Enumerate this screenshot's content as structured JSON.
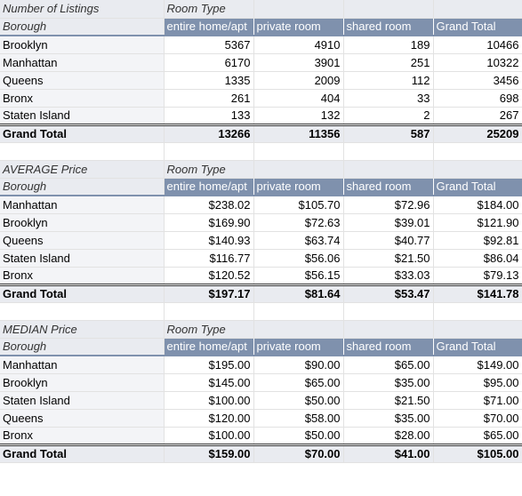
{
  "pivots": [
    {
      "title": "Number of Listings",
      "col_header": "Room Type",
      "row_header": "Borough",
      "columns": [
        "entire home/apt",
        "private room",
        "shared room",
        "Grand Total"
      ],
      "rows": [
        {
          "label": "Brooklyn",
          "values": [
            "5367",
            "4910",
            "189",
            "10466"
          ]
        },
        {
          "label": "Manhattan",
          "values": [
            "6170",
            "3901",
            "251",
            "10322"
          ]
        },
        {
          "label": "Queens",
          "values": [
            "1335",
            "2009",
            "112",
            "3456"
          ]
        },
        {
          "label": "Bronx",
          "values": [
            "261",
            "404",
            "33",
            "698"
          ]
        },
        {
          "label": "Staten Island",
          "values": [
            "133",
            "132",
            "2",
            "267"
          ]
        }
      ],
      "total": {
        "label": "Grand Total",
        "values": [
          "13266",
          "11356",
          "587",
          "25209"
        ]
      }
    },
    {
      "title": "AVERAGE Price",
      "col_header": "Room Type",
      "row_header": "Borough",
      "columns": [
        "entire home/apt",
        "private room",
        "shared room",
        "Grand Total"
      ],
      "rows": [
        {
          "label": "Manhattan",
          "values": [
            "$238.02",
            "$105.70",
            "$72.96",
            "$184.00"
          ]
        },
        {
          "label": "Brooklyn",
          "values": [
            "$169.90",
            "$72.63",
            "$39.01",
            "$121.90"
          ]
        },
        {
          "label": "Queens",
          "values": [
            "$140.93",
            "$63.74",
            "$40.77",
            "$92.81"
          ]
        },
        {
          "label": "Staten Island",
          "values": [
            "$116.77",
            "$56.06",
            "$21.50",
            "$86.04"
          ]
        },
        {
          "label": "Bronx",
          "values": [
            "$120.52",
            "$56.15",
            "$33.03",
            "$79.13"
          ]
        }
      ],
      "total": {
        "label": "Grand Total",
        "values": [
          "$197.17",
          "$81.64",
          "$53.47",
          "$141.78"
        ]
      }
    },
    {
      "title": "MEDIAN Price",
      "col_header": "Room Type",
      "row_header": "Borough",
      "columns": [
        "entire home/apt",
        "private room",
        "shared room",
        "Grand Total"
      ],
      "rows": [
        {
          "label": "Manhattan",
          "values": [
            "$195.00",
            "$90.00",
            "$65.00",
            "$149.00"
          ]
        },
        {
          "label": "Brooklyn",
          "values": [
            "$145.00",
            "$65.00",
            "$35.00",
            "$95.00"
          ]
        },
        {
          "label": "Staten Island",
          "values": [
            "$100.00",
            "$50.00",
            "$21.50",
            "$71.00"
          ]
        },
        {
          "label": "Queens",
          "values": [
            "$120.00",
            "$58.00",
            "$35.00",
            "$70.00"
          ]
        },
        {
          "label": "Bronx",
          "values": [
            "$100.00",
            "$50.00",
            "$28.00",
            "$65.00"
          ]
        }
      ],
      "total": {
        "label": "Grand Total",
        "values": [
          "$159.00",
          "$70.00",
          "$41.00",
          "$105.00"
        ]
      }
    }
  ]
}
